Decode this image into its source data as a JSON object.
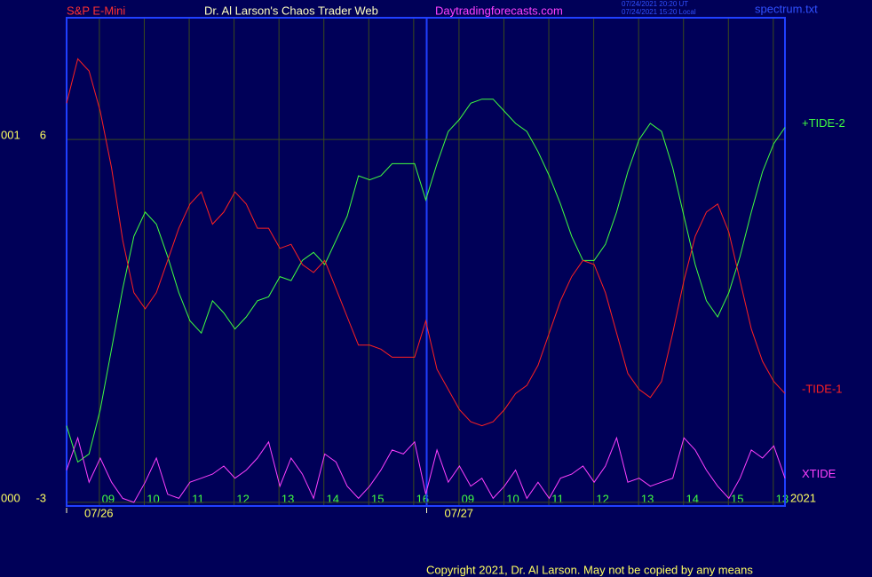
{
  "chart_data": {
    "type": "line",
    "header": {
      "symbol": "S&P E-Mini",
      "title": "Dr. Al Larson's Chaos Trader Web",
      "site": "Daytradingforecasts.com",
      "timestamp_ut": "07/24/2021 20:20 UT",
      "timestamp_local": "07/24/2021 15:20 Local",
      "file": "spectrum.txt"
    },
    "footer": "Copyright 2021, Dr. Al Larson. May not be copied by any means",
    "year_label": "2021",
    "x": [
      0,
      0.25,
      0.5,
      0.75,
      1,
      1.25,
      1.5,
      1.75,
      2,
      2.25,
      2.5,
      2.75,
      3,
      3.25,
      3.5,
      3.75,
      4,
      4.25,
      4.5,
      4.75,
      5,
      5.25,
      5.5,
      5.75,
      6,
      6.25,
      6.5,
      6.75,
      7,
      7.25,
      7.5,
      7.75,
      8,
      8.25,
      8.5,
      8.75,
      9,
      9.25,
      9.5,
      9.75,
      10,
      10.25,
      10.5,
      10.75,
      11,
      11.25,
      11.5,
      11.75,
      12,
      12.25,
      12.5,
      12.75,
      13,
      13.25,
      13.5,
      13.75,
      14,
      14.25,
      14.5,
      14.75,
      15,
      15.25,
      15.5,
      15.75,
      16
    ],
    "xlim": [
      0,
      16
    ],
    "xticks": [
      {
        "value": 0.73,
        "label": "09"
      },
      {
        "value": 1.73,
        "label": "10"
      },
      {
        "value": 2.73,
        "label": "11"
      },
      {
        "value": 3.73,
        "label": "12"
      },
      {
        "value": 4.73,
        "label": "13"
      },
      {
        "value": 5.73,
        "label": "14"
      },
      {
        "value": 6.73,
        "label": "15"
      },
      {
        "value": 7.73,
        "label": "16"
      },
      {
        "value": 8.74,
        "label": "09"
      },
      {
        "value": 9.74,
        "label": "10"
      },
      {
        "value": 10.74,
        "label": "11"
      },
      {
        "value": 11.74,
        "label": "12"
      },
      {
        "value": 12.74,
        "label": "13"
      },
      {
        "value": 13.74,
        "label": "14"
      },
      {
        "value": 14.74,
        "label": "15"
      },
      {
        "value": 15.74,
        "label": "13"
      }
    ],
    "day_ticks": [
      {
        "value": 0,
        "label": "07/26"
      },
      {
        "value": 8.02,
        "label": "07/27"
      }
    ],
    "ylim": [
      -3.09,
      9.02
    ],
    "yticks": [
      -3,
      6
    ],
    "ytick_prefixes": [
      "000",
      "001"
    ],
    "grid": true,
    "series": [
      {
        "name": "+TIDE-2",
        "color": "#40ff40",
        "values": [
          -1.1,
          -2.0,
          -1.8,
          -0.7,
          0.8,
          2.3,
          3.6,
          4.2,
          3.9,
          3.1,
          2.2,
          1.5,
          1.2,
          2.0,
          1.7,
          1.3,
          1.6,
          2.0,
          2.1,
          2.6,
          2.5,
          3.0,
          3.2,
          2.9,
          3.5,
          4.1,
          5.1,
          5.0,
          5.1,
          5.4,
          5.4,
          5.4,
          4.5,
          5.4,
          6.2,
          6.5,
          6.9,
          7.0,
          7.0,
          6.7,
          6.4,
          6.2,
          5.7,
          5.1,
          4.4,
          3.6,
          3.0,
          3.0,
          3.4,
          4.2,
          5.2,
          6.0,
          6.4,
          6.2,
          5.3,
          4.1,
          2.9,
          2.0,
          1.6,
          2.2,
          3.1,
          4.2,
          5.2,
          5.9,
          6.3
        ]
      },
      {
        "name": "-TIDE-1",
        "color": "#ff2020",
        "values": [
          6.9,
          8.0,
          7.7,
          6.7,
          5.3,
          3.5,
          2.2,
          1.8,
          2.2,
          3.0,
          3.8,
          4.4,
          4.7,
          3.9,
          4.2,
          4.7,
          4.4,
          3.8,
          3.8,
          3.3,
          3.4,
          2.9,
          2.7,
          3.0,
          2.3,
          1.6,
          0.9,
          0.9,
          0.8,
          0.6,
          0.6,
          0.6,
          1.5,
          0.3,
          -0.2,
          -0.7,
          -1.0,
          -1.1,
          -1.0,
          -0.7,
          -0.3,
          -0.1,
          0.4,
          1.2,
          2.0,
          2.6,
          3.0,
          2.9,
          2.2,
          1.2,
          0.2,
          -0.2,
          -0.4,
          0.0,
          1.2,
          2.5,
          3.6,
          4.2,
          4.4,
          3.7,
          2.5,
          1.3,
          0.5,
          0.0,
          -0.3
        ]
      },
      {
        "name": "XTIDE",
        "color": "#ff40ff",
        "values": [
          -2.2,
          -1.4,
          -2.5,
          -1.9,
          -2.5,
          -2.9,
          -3.0,
          -2.5,
          -1.9,
          -2.8,
          -2.9,
          -2.5,
          -2.4,
          -2.3,
          -2.1,
          -2.4,
          -2.2,
          -1.9,
          -1.5,
          -2.6,
          -1.9,
          -2.3,
          -2.9,
          -1.8,
          -2.0,
          -2.6,
          -2.9,
          -2.6,
          -2.2,
          -1.7,
          -1.8,
          -1.5,
          -2.8,
          -1.7,
          -2.5,
          -2.1,
          -2.6,
          -2.4,
          -2.9,
          -2.6,
          -2.2,
          -2.9,
          -2.5,
          -2.9,
          -2.4,
          -2.3,
          -2.1,
          -2.5,
          -2.1,
          -1.4,
          -2.5,
          -2.4,
          -2.6,
          -2.5,
          -2.4,
          -1.4,
          -1.7,
          -2.2,
          -2.6,
          -2.9,
          -2.4,
          -1.7,
          -1.9,
          -1.6,
          -2.4
        ]
      }
    ]
  }
}
